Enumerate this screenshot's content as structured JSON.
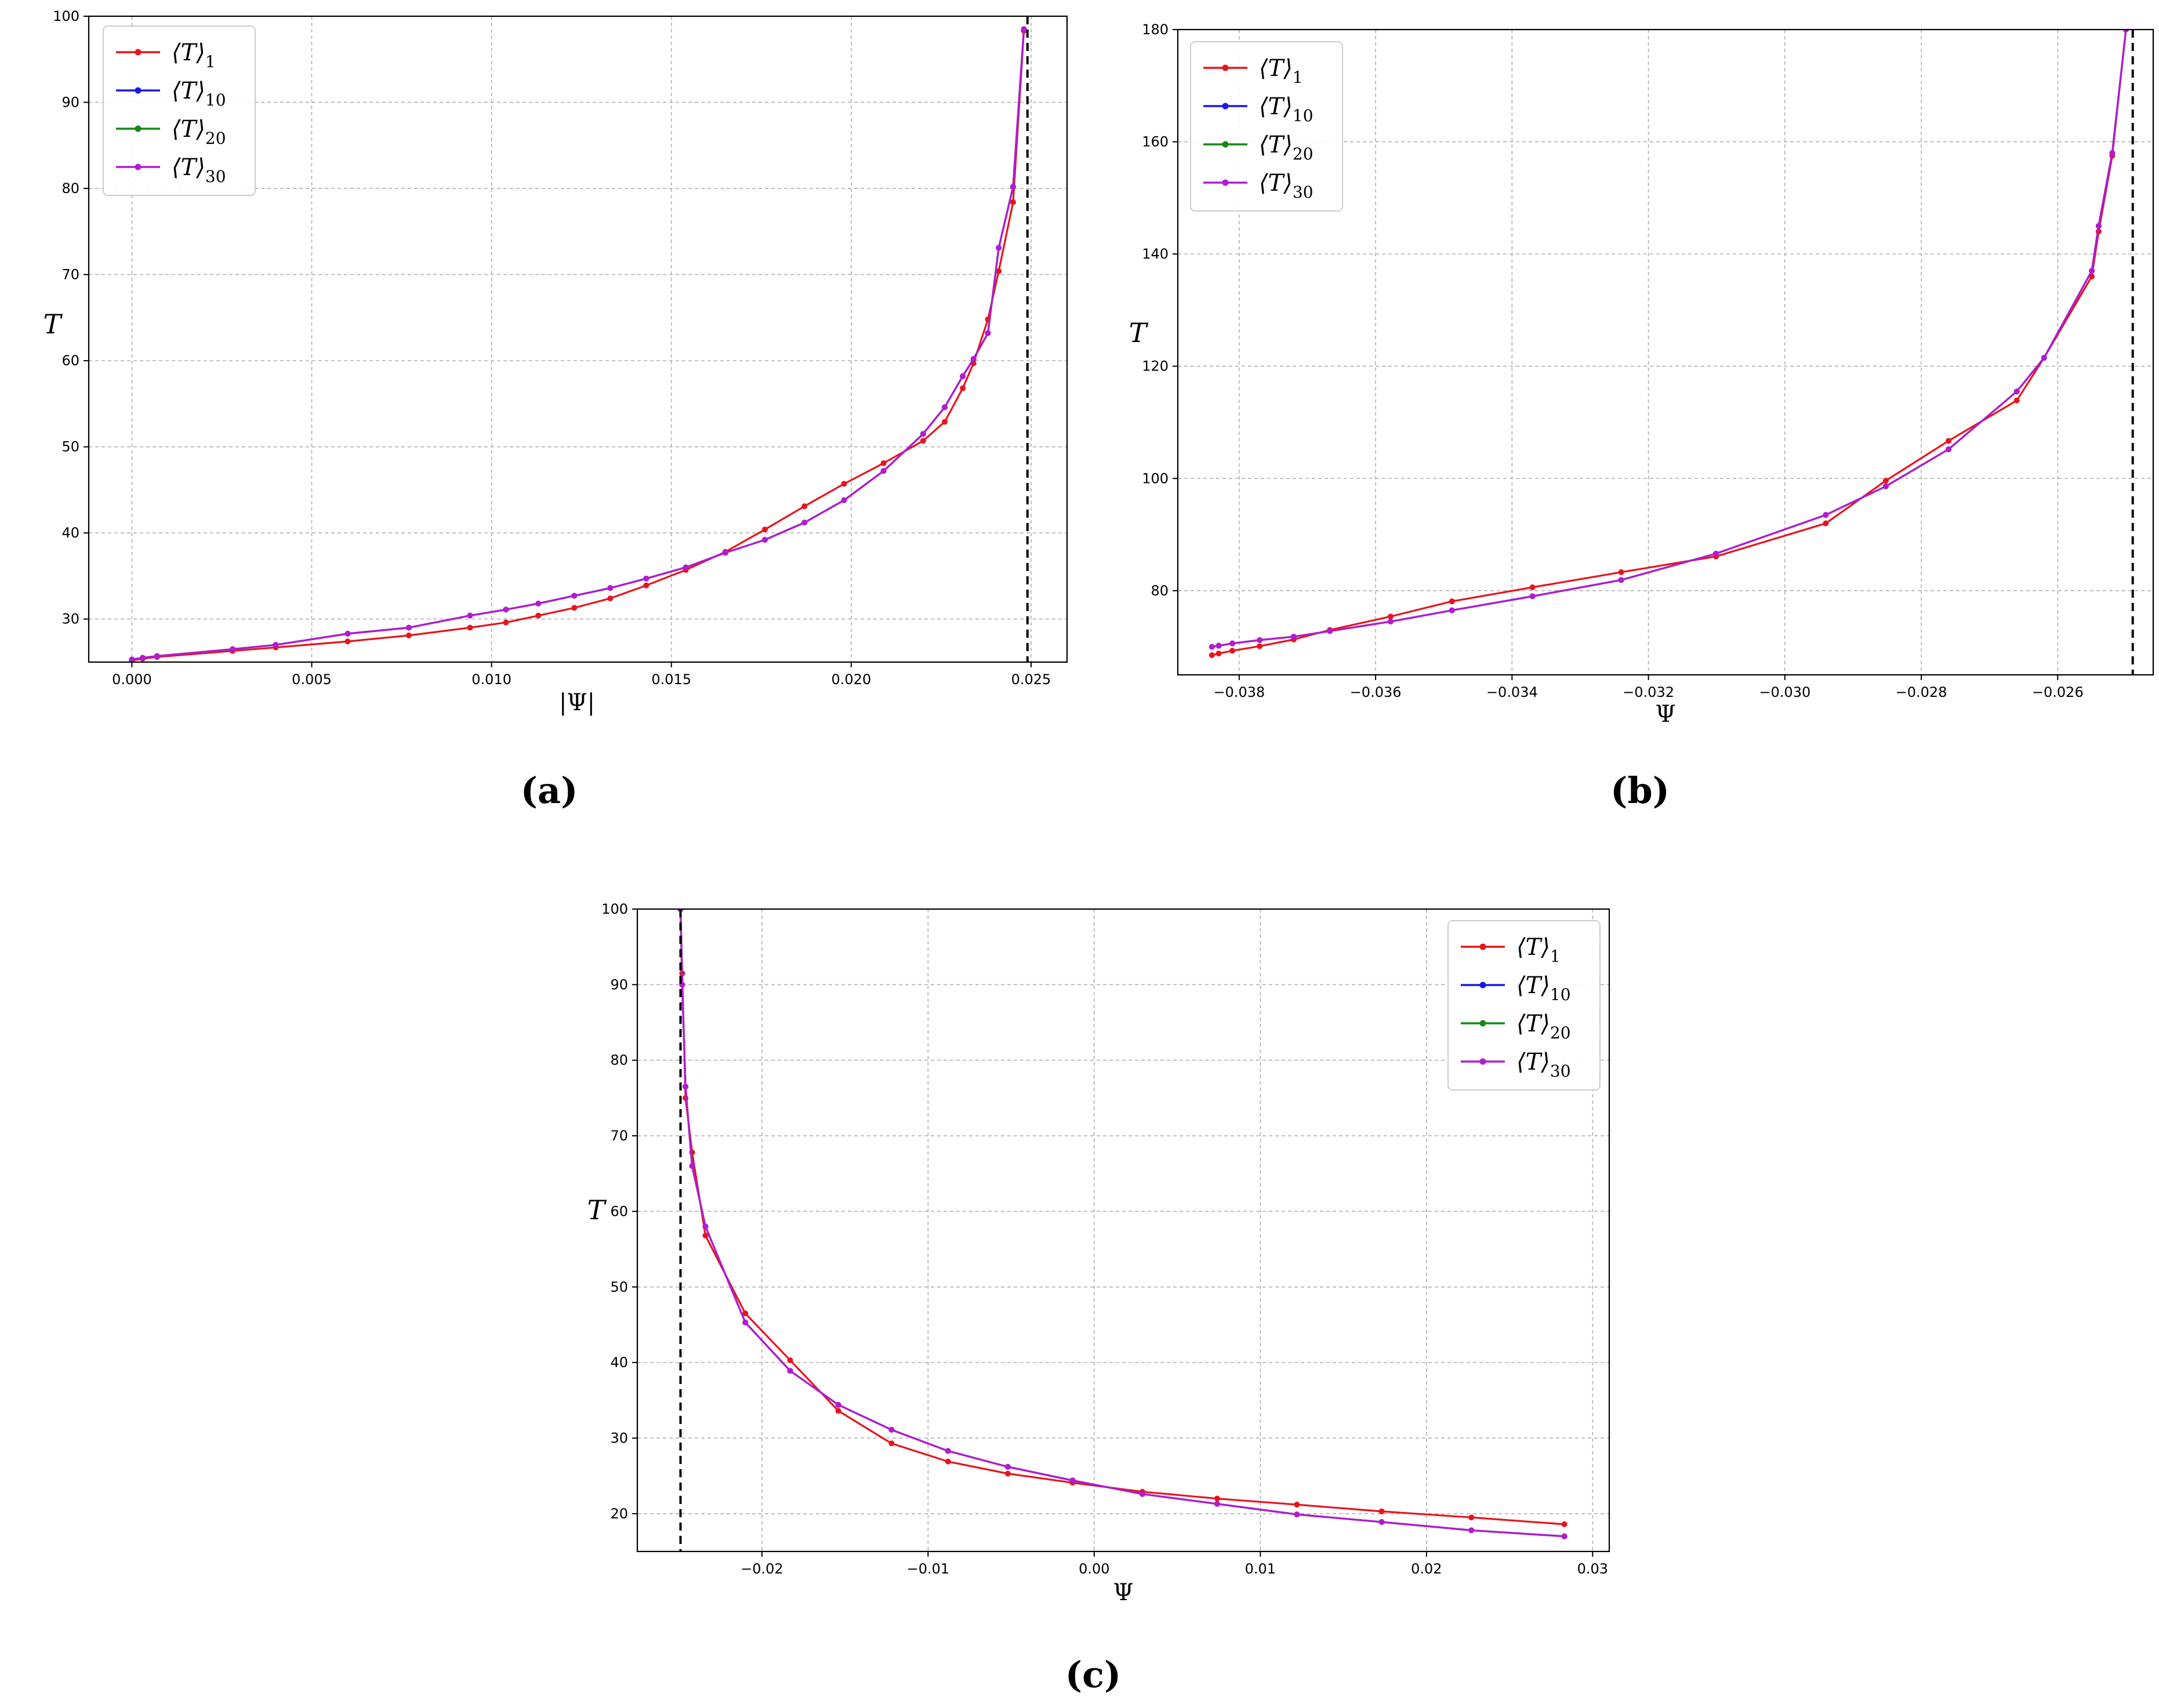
{
  "chart_data": [
    {
      "panel": "(a)",
      "type": "line",
      "xlabel": "|Ψ|",
      "ylabel": "T",
      "xlim": [
        -0.0012,
        0.026
      ],
      "ylim": [
        25,
        100
      ],
      "xticks": [
        0.0,
        0.005,
        0.01,
        0.015,
        0.02,
        0.025
      ],
      "xtick_labels": [
        "0.000",
        "0.005",
        "0.010",
        "0.015",
        "0.020",
        "0.025"
      ],
      "yticks": [
        30,
        40,
        50,
        60,
        70,
        80,
        90,
        100
      ],
      "ytick_labels": [
        "30",
        "40",
        "50",
        "60",
        "70",
        "80",
        "90",
        "100"
      ],
      "grid": true,
      "legend_position": "top-left",
      "asymptote_x": 0.0249,
      "series": [
        {
          "name": "⟨T⟩",
          "subscript": "1",
          "color": "#e8141c",
          "x": [
            0.0,
            0.0003,
            0.0007,
            0.0028,
            0.004,
            0.006,
            0.0077,
            0.0094,
            0.0104,
            0.0113,
            0.0123,
            0.0133,
            0.0143,
            0.0154,
            0.0165,
            0.0176,
            0.0187,
            0.0198,
            0.0209,
            0.022,
            0.0226,
            0.0231,
            0.0234,
            0.0238,
            0.0241,
            0.0245,
            0.0248
          ],
          "y": [
            25.2,
            25.4,
            25.6,
            26.3,
            26.7,
            27.4,
            28.1,
            29.0,
            29.6,
            30.4,
            31.3,
            32.4,
            33.9,
            35.7,
            37.8,
            40.4,
            43.1,
            45.7,
            48.1,
            50.7,
            52.9,
            56.8,
            59.7,
            64.8,
            70.4,
            78.4,
            98.3
          ]
        },
        {
          "name": "⟨T⟩",
          "subscript": "10",
          "color": "#1a18e6",
          "x": [
            0.0,
            0.0003,
            0.0007,
            0.0028,
            0.004,
            0.006,
            0.0077,
            0.0094,
            0.0104,
            0.0113,
            0.0123,
            0.0133,
            0.0143,
            0.0154,
            0.0165,
            0.0176,
            0.0187,
            0.0198,
            0.0209,
            0.022,
            0.0226,
            0.0231,
            0.0234,
            0.0238,
            0.0241,
            0.0245,
            0.0248
          ],
          "y": [
            25.3,
            25.5,
            25.7,
            26.5,
            27.0,
            28.3,
            29.0,
            30.4,
            31.1,
            31.8,
            32.7,
            33.6,
            34.7,
            36.0,
            37.7,
            39.2,
            41.2,
            43.8,
            47.2,
            51.5,
            54.6,
            58.2,
            60.2,
            63.2,
            73.1,
            80.2,
            98.5
          ]
        },
        {
          "name": "⟨T⟩",
          "subscript": "20",
          "color": "#138a13",
          "x": [
            0.0,
            0.0003,
            0.0007,
            0.0028,
            0.004,
            0.006,
            0.0077,
            0.0094,
            0.0104,
            0.0113,
            0.0123,
            0.0133,
            0.0143,
            0.0154,
            0.0165,
            0.0176,
            0.0187,
            0.0198,
            0.0209,
            0.022,
            0.0226,
            0.0231,
            0.0234,
            0.0238,
            0.0241,
            0.0245,
            0.0248
          ],
          "y": [
            25.3,
            25.5,
            25.7,
            26.5,
            27.0,
            28.3,
            29.0,
            30.4,
            31.1,
            31.8,
            32.7,
            33.6,
            34.7,
            36.0,
            37.7,
            39.2,
            41.2,
            43.8,
            47.2,
            51.5,
            54.6,
            58.2,
            60.2,
            63.2,
            73.1,
            80.2,
            98.5
          ]
        },
        {
          "name": "⟨T⟩",
          "subscript": "30",
          "color": "#b41ad4",
          "x": [
            0.0,
            0.0003,
            0.0007,
            0.0028,
            0.004,
            0.006,
            0.0077,
            0.0094,
            0.0104,
            0.0113,
            0.0123,
            0.0133,
            0.0143,
            0.0154,
            0.0165,
            0.0176,
            0.0187,
            0.0198,
            0.0209,
            0.022,
            0.0226,
            0.0231,
            0.0234,
            0.0238,
            0.0241,
            0.0245,
            0.0248
          ],
          "y": [
            25.3,
            25.5,
            25.7,
            26.5,
            27.0,
            28.3,
            29.0,
            30.4,
            31.1,
            31.8,
            32.7,
            33.6,
            34.7,
            36.0,
            37.7,
            39.2,
            41.2,
            43.8,
            47.2,
            51.5,
            54.6,
            58.2,
            60.2,
            63.2,
            73.1,
            80.2,
            98.5
          ]
        }
      ]
    },
    {
      "panel": "(b)",
      "type": "line",
      "xlabel": "Ψ",
      "ylabel": "T",
      "xlim": [
        -0.0389,
        -0.0246
      ],
      "ylim": [
        65,
        180
      ],
      "xticks": [
        -0.038,
        -0.036,
        -0.034,
        -0.032,
        -0.03,
        -0.028,
        -0.026
      ],
      "xtick_labels": [
        "−0.038",
        "−0.036",
        "−0.034",
        "−0.032",
        "−0.030",
        "−0.028",
        "−0.026"
      ],
      "yticks": [
        80,
        100,
        120,
        140,
        160,
        180
      ],
      "ytick_labels": [
        "80",
        "100",
        "120",
        "140",
        "160",
        "180"
      ],
      "grid": true,
      "legend_position": "top-left",
      "asymptote_x": -0.0249,
      "series": [
        {
          "name": "⟨T⟩",
          "subscript": "1",
          "color": "#e8141c",
          "x": [
            -0.0384,
            -0.0383,
            -0.0381,
            -0.0377,
            -0.0372,
            -0.03667,
            -0.03578,
            -0.03488,
            -0.0337,
            -0.0324,
            -0.03101,
            -0.0294,
            -0.02852,
            -0.0276,
            -0.0266,
            -0.0262,
            -0.0255,
            -0.0254,
            -0.0252,
            -0.025
          ],
          "y": [
            68.5,
            68.8,
            69.3,
            70.1,
            71.3,
            73.0,
            75.4,
            78.1,
            80.6,
            83.3,
            86.1,
            92.0,
            99.6,
            106.7,
            113.9,
            121.5,
            136.0,
            144.0,
            157.5,
            180.0
          ]
        },
        {
          "name": "⟨T⟩",
          "subscript": "10",
          "color": "#1a18e6",
          "x": [
            -0.0384,
            -0.0383,
            -0.0381,
            -0.0377,
            -0.0372,
            -0.03667,
            -0.03578,
            -0.03488,
            -0.0337,
            -0.0324,
            -0.03101,
            -0.0294,
            -0.02852,
            -0.0276,
            -0.0266,
            -0.0262,
            -0.0255,
            -0.0254,
            -0.0252,
            -0.025
          ],
          "y": [
            70.0,
            70.2,
            70.6,
            71.2,
            71.8,
            72.8,
            74.5,
            76.5,
            79.0,
            81.9,
            86.6,
            93.5,
            98.6,
            105.2,
            115.5,
            121.5,
            137.0,
            145.0,
            158.0,
            180.0
          ]
        },
        {
          "name": "⟨T⟩",
          "subscript": "20",
          "color": "#138a13",
          "x": [
            -0.0384,
            -0.0383,
            -0.0381,
            -0.0377,
            -0.0372,
            -0.03667,
            -0.03578,
            -0.03488,
            -0.0337,
            -0.0324,
            -0.03101,
            -0.0294,
            -0.02852,
            -0.0276,
            -0.0266,
            -0.0262,
            -0.0255,
            -0.0254,
            -0.0252,
            -0.025
          ],
          "y": [
            70.0,
            70.2,
            70.6,
            71.2,
            71.8,
            72.8,
            74.5,
            76.5,
            79.0,
            81.9,
            86.6,
            93.5,
            98.6,
            105.2,
            115.5,
            121.5,
            137.0,
            145.0,
            158.0,
            180.0
          ]
        },
        {
          "name": "⟨T⟩",
          "subscript": "30",
          "color": "#b41ad4",
          "x": [
            -0.0384,
            -0.0383,
            -0.0381,
            -0.0377,
            -0.0372,
            -0.03667,
            -0.03578,
            -0.03488,
            -0.0337,
            -0.0324,
            -0.03101,
            -0.0294,
            -0.02852,
            -0.0276,
            -0.0266,
            -0.0262,
            -0.0255,
            -0.0254,
            -0.0252,
            -0.025
          ],
          "y": [
            70.0,
            70.2,
            70.6,
            71.2,
            71.8,
            72.8,
            74.5,
            76.5,
            79.0,
            81.9,
            86.6,
            93.5,
            98.6,
            105.2,
            115.5,
            121.5,
            137.0,
            145.0,
            158.0,
            180.0
          ]
        }
      ]
    },
    {
      "panel": "(c)",
      "type": "line",
      "xlabel": "Ψ",
      "ylabel": "T",
      "xlim": [
        -0.0275,
        0.031
      ],
      "ylim": [
        15,
        100
      ],
      "xticks": [
        -0.02,
        -0.01,
        0.0,
        0.01,
        0.02,
        0.03
      ],
      "xtick_labels": [
        "−0.02",
        "−0.01",
        "0.00",
        "0.01",
        "0.02",
        "0.03"
      ],
      "yticks": [
        20,
        30,
        40,
        50,
        60,
        70,
        80,
        90,
        100
      ],
      "ytick_labels": [
        "20",
        "30",
        "40",
        "50",
        "60",
        "70",
        "80",
        "90",
        "100"
      ],
      "grid": true,
      "legend_position": "top-right",
      "asymptote_x": -0.0249,
      "series": [
        {
          "name": "⟨T⟩",
          "subscript": "1",
          "color": "#e8141c",
          "x": [
            -0.0249,
            -0.0248,
            -0.0246,
            -0.0242,
            -0.0234,
            -0.021,
            -0.0183,
            -0.0154,
            -0.0122,
            -0.0088,
            -0.0052,
            -0.0013,
            0.0029,
            0.0074,
            0.0122,
            0.0173,
            0.0227,
            0.0283
          ],
          "y": [
            100.0,
            91.5,
            75.0,
            67.8,
            56.8,
            46.5,
            40.3,
            33.6,
            29.3,
            26.9,
            25.3,
            24.1,
            22.9,
            22.0,
            21.2,
            20.3,
            19.5,
            18.6
          ]
        },
        {
          "name": "⟨T⟩",
          "subscript": "10",
          "color": "#1a18e6",
          "x": [
            -0.0249,
            -0.0248,
            -0.0246,
            -0.0242,
            -0.0234,
            -0.021,
            -0.0183,
            -0.0154,
            -0.0122,
            -0.0088,
            -0.0052,
            -0.0013,
            0.0029,
            0.0074,
            0.0122,
            0.0173,
            0.0227,
            0.0283
          ],
          "y": [
            100.0,
            90.0,
            76.5,
            66.0,
            58.0,
            45.3,
            38.9,
            34.4,
            31.1,
            28.3,
            26.2,
            24.4,
            22.6,
            21.3,
            19.9,
            18.9,
            17.8,
            17.0
          ]
        },
        {
          "name": "⟨T⟩",
          "subscript": "20",
          "color": "#138a13",
          "x": [
            -0.0249,
            -0.0248,
            -0.0246,
            -0.0242,
            -0.0234,
            -0.021,
            -0.0183,
            -0.0154,
            -0.0122,
            -0.0088,
            -0.0052,
            -0.0013,
            0.0029,
            0.0074,
            0.0122,
            0.0173,
            0.0227,
            0.0283
          ],
          "y": [
            100.0,
            90.0,
            76.5,
            66.0,
            58.0,
            45.3,
            38.9,
            34.4,
            31.1,
            28.3,
            26.2,
            24.4,
            22.6,
            21.3,
            19.9,
            18.9,
            17.8,
            17.0
          ]
        },
        {
          "name": "⟨T⟩",
          "subscript": "30",
          "color": "#b41ad4",
          "x": [
            -0.0249,
            -0.0248,
            -0.0246,
            -0.0242,
            -0.0234,
            -0.021,
            -0.0183,
            -0.0154,
            -0.0122,
            -0.0088,
            -0.0052,
            -0.0013,
            0.0029,
            0.0074,
            0.0122,
            0.0173,
            0.0227,
            0.0283
          ],
          "y": [
            100.0,
            90.0,
            76.5,
            66.0,
            58.0,
            45.3,
            38.9,
            34.4,
            31.1,
            28.3,
            26.2,
            24.4,
            22.6,
            21.3,
            19.9,
            18.9,
            17.8,
            17.0
          ]
        }
      ]
    }
  ]
}
